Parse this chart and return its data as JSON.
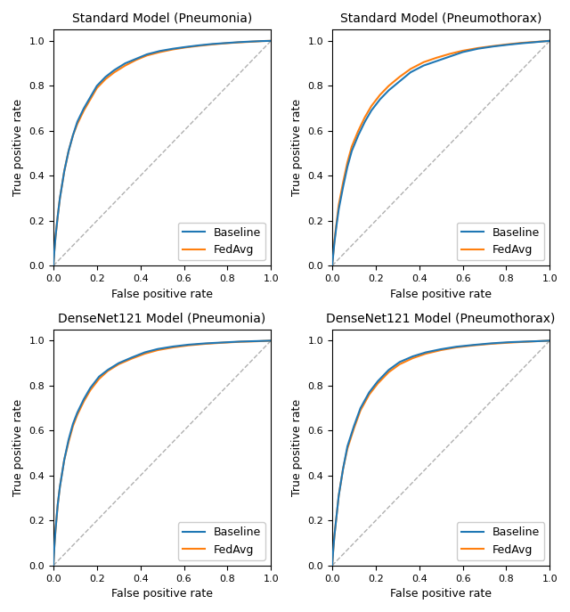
{
  "titles": [
    "Standard Model (Pneumonia)",
    "Standard Model (Pneumothorax)",
    "DenseNet121 Model (Pneumonia)",
    "DenseNet121 Model (Pneumothorax)"
  ],
  "xlabel": "False positive rate",
  "ylabel": "True positive rate",
  "baseline_color": "#1f77b4",
  "fedavg_color": "#ff7f0e",
  "diag_color": "#b0b0b0",
  "legend_labels": [
    "Baseline",
    "FedAvg"
  ],
  "figsize": [
    6.4,
    6.87
  ],
  "dpi": 100,
  "curves": {
    "std_pneumonia": {
      "baseline_fpr": [
        0.0,
        0.002,
        0.005,
        0.01,
        0.02,
        0.03,
        0.05,
        0.07,
        0.09,
        0.11,
        0.14,
        0.17,
        0.2,
        0.24,
        0.28,
        0.33,
        0.38,
        0.43,
        0.49,
        0.55,
        0.61,
        0.67,
        0.73,
        0.79,
        0.85,
        0.91,
        0.96,
        1.0
      ],
      "baseline_tpr": [
        0.0,
        0.03,
        0.07,
        0.13,
        0.22,
        0.3,
        0.42,
        0.51,
        0.58,
        0.64,
        0.7,
        0.75,
        0.8,
        0.84,
        0.87,
        0.9,
        0.92,
        0.94,
        0.955,
        0.965,
        0.973,
        0.98,
        0.986,
        0.99,
        0.994,
        0.997,
        0.999,
        1.0
      ],
      "fedavg_fpr": [
        0.0,
        0.002,
        0.005,
        0.01,
        0.02,
        0.03,
        0.05,
        0.07,
        0.09,
        0.11,
        0.14,
        0.17,
        0.2,
        0.24,
        0.28,
        0.33,
        0.38,
        0.43,
        0.49,
        0.55,
        0.61,
        0.67,
        0.73,
        0.79,
        0.85,
        0.91,
        0.96,
        1.0
      ],
      "fedavg_tpr": [
        0.0,
        0.03,
        0.07,
        0.13,
        0.22,
        0.3,
        0.42,
        0.51,
        0.58,
        0.63,
        0.69,
        0.74,
        0.79,
        0.83,
        0.86,
        0.89,
        0.915,
        0.935,
        0.95,
        0.962,
        0.971,
        0.978,
        0.984,
        0.989,
        0.993,
        0.996,
        0.999,
        1.0
      ]
    },
    "std_pneumothorax": {
      "baseline_fpr": [
        0.0,
        0.002,
        0.005,
        0.01,
        0.02,
        0.03,
        0.05,
        0.07,
        0.09,
        0.12,
        0.15,
        0.18,
        0.22,
        0.26,
        0.31,
        0.36,
        0.42,
        0.48,
        0.54,
        0.6,
        0.67,
        0.74,
        0.81,
        0.87,
        0.93,
        1.0
      ],
      "baseline_tpr": [
        0.0,
        0.02,
        0.05,
        0.1,
        0.18,
        0.25,
        0.35,
        0.44,
        0.51,
        0.58,
        0.64,
        0.69,
        0.74,
        0.78,
        0.82,
        0.86,
        0.89,
        0.91,
        0.93,
        0.95,
        0.965,
        0.975,
        0.983,
        0.989,
        0.994,
        1.0
      ],
      "fedavg_fpr": [
        0.0,
        0.002,
        0.005,
        0.01,
        0.02,
        0.03,
        0.05,
        0.07,
        0.09,
        0.12,
        0.15,
        0.18,
        0.22,
        0.26,
        0.31,
        0.36,
        0.42,
        0.48,
        0.54,
        0.6,
        0.67,
        0.74,
        0.81,
        0.87,
        0.93,
        1.0
      ],
      "fedavg_tpr": [
        0.0,
        0.025,
        0.055,
        0.11,
        0.19,
        0.27,
        0.37,
        0.46,
        0.53,
        0.6,
        0.66,
        0.71,
        0.76,
        0.8,
        0.84,
        0.875,
        0.905,
        0.925,
        0.942,
        0.956,
        0.968,
        0.977,
        0.985,
        0.991,
        0.995,
        1.0
      ]
    },
    "dense_pneumonia": {
      "baseline_fpr": [
        0.0,
        0.002,
        0.005,
        0.01,
        0.02,
        0.03,
        0.05,
        0.07,
        0.09,
        0.11,
        0.14,
        0.17,
        0.21,
        0.25,
        0.3,
        0.36,
        0.42,
        0.48,
        0.55,
        0.62,
        0.7,
        0.78,
        0.86,
        0.93,
        1.0
      ],
      "baseline_tpr": [
        0.0,
        0.04,
        0.09,
        0.16,
        0.27,
        0.35,
        0.47,
        0.56,
        0.63,
        0.68,
        0.74,
        0.79,
        0.84,
        0.87,
        0.9,
        0.925,
        0.948,
        0.963,
        0.974,
        0.982,
        0.988,
        0.992,
        0.996,
        0.998,
        1.0
      ],
      "fedavg_fpr": [
        0.0,
        0.002,
        0.005,
        0.01,
        0.02,
        0.03,
        0.05,
        0.07,
        0.09,
        0.11,
        0.14,
        0.17,
        0.21,
        0.25,
        0.3,
        0.36,
        0.42,
        0.48,
        0.55,
        0.62,
        0.7,
        0.78,
        0.86,
        0.93,
        1.0
      ],
      "fedavg_tpr": [
        0.0,
        0.04,
        0.09,
        0.16,
        0.27,
        0.35,
        0.47,
        0.55,
        0.62,
        0.67,
        0.73,
        0.78,
        0.83,
        0.865,
        0.895,
        0.92,
        0.942,
        0.958,
        0.97,
        0.979,
        0.986,
        0.991,
        0.995,
        0.997,
        1.0
      ]
    },
    "dense_pneumothorax": {
      "baseline_fpr": [
        0.0,
        0.002,
        0.005,
        0.01,
        0.02,
        0.03,
        0.05,
        0.07,
        0.1,
        0.13,
        0.17,
        0.21,
        0.26,
        0.31,
        0.37,
        0.43,
        0.5,
        0.57,
        0.65,
        0.73,
        0.81,
        0.89,
        0.95,
        1.0
      ],
      "baseline_tpr": [
        0.0,
        0.03,
        0.07,
        0.13,
        0.22,
        0.31,
        0.43,
        0.53,
        0.62,
        0.7,
        0.77,
        0.82,
        0.87,
        0.905,
        0.93,
        0.948,
        0.962,
        0.973,
        0.981,
        0.988,
        0.993,
        0.996,
        0.998,
        1.0
      ],
      "fedavg_fpr": [
        0.0,
        0.002,
        0.005,
        0.01,
        0.02,
        0.03,
        0.05,
        0.07,
        0.1,
        0.13,
        0.17,
        0.21,
        0.26,
        0.31,
        0.37,
        0.43,
        0.5,
        0.57,
        0.65,
        0.73,
        0.81,
        0.89,
        0.95,
        1.0
      ],
      "fedavg_tpr": [
        0.0,
        0.03,
        0.07,
        0.13,
        0.22,
        0.31,
        0.43,
        0.52,
        0.61,
        0.69,
        0.76,
        0.81,
        0.86,
        0.895,
        0.922,
        0.942,
        0.958,
        0.97,
        0.979,
        0.986,
        0.991,
        0.995,
        0.998,
        1.0
      ]
    }
  }
}
